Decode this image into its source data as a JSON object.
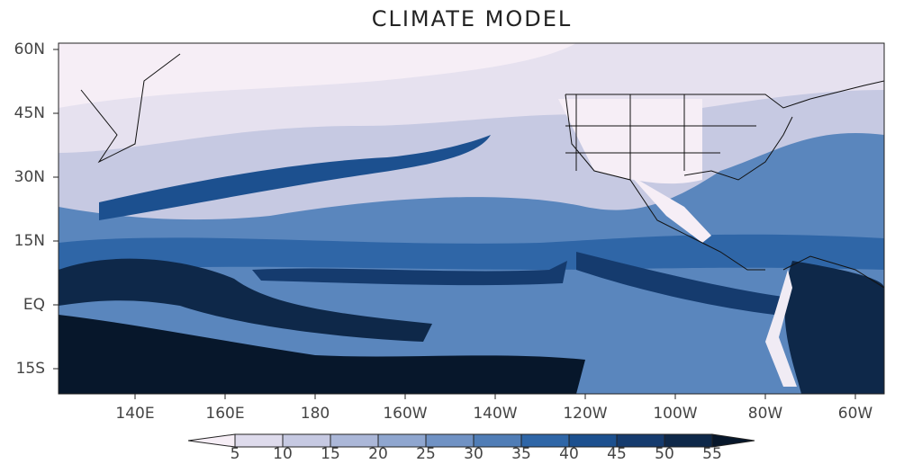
{
  "title": "CLIMATE MODEL",
  "map": {
    "lat_ticks": [
      "60N",
      "45N",
      "30N",
      "15N",
      "EQ",
      "15S"
    ],
    "lon_ticks": [
      "140E",
      "160E",
      "180",
      "160W",
      "140W",
      "120W",
      "100W",
      "80W",
      "60W"
    ]
  },
  "colorbar": {
    "levels": [
      5,
      10,
      15,
      20,
      25,
      30,
      35,
      40,
      45,
      50,
      55
    ],
    "colors": [
      "#f6eef6",
      "#dedbec",
      "#c6c9e2",
      "#abb7d8",
      "#8fa6cf",
      "#7092c4",
      "#507db6",
      "#2f66a7",
      "#1c508f",
      "#153b6e",
      "#0e2849",
      "#07172b"
    ]
  }
}
